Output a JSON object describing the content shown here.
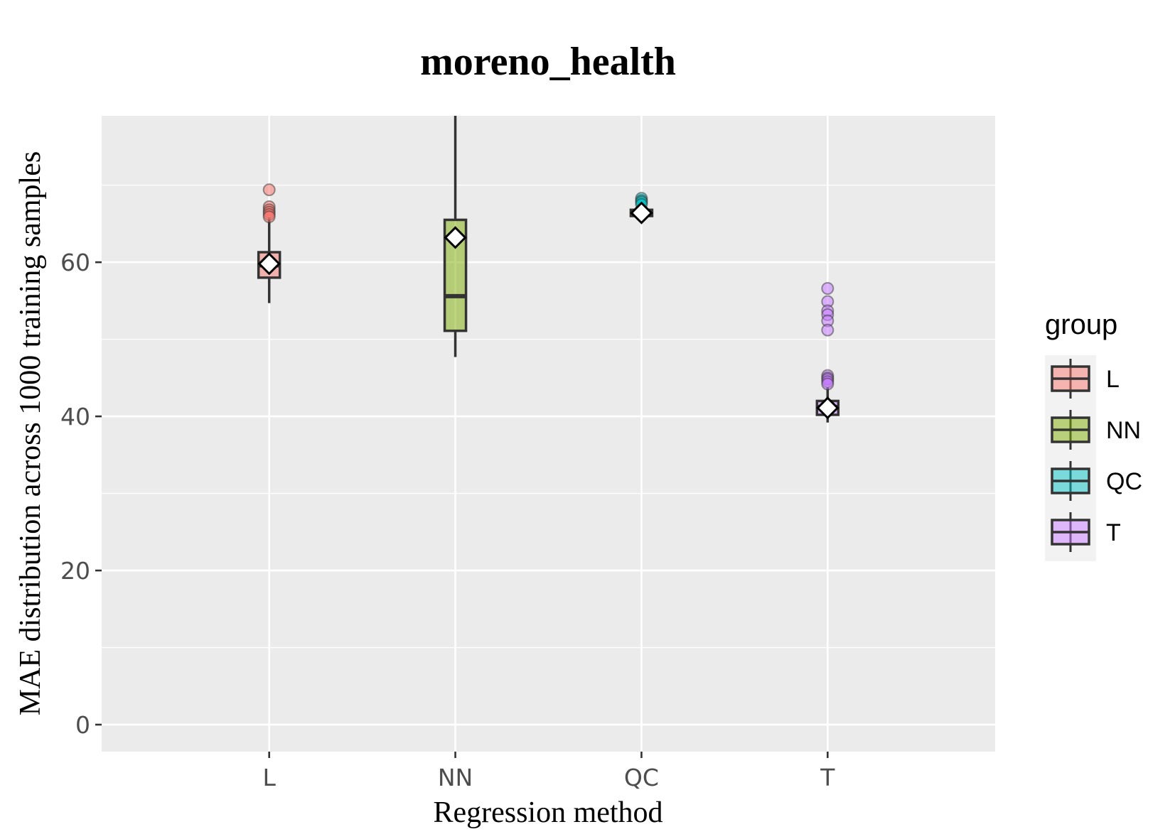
{
  "chart_data": {
    "type": "box",
    "title": "moreno_health",
    "xlabel": "Regression method",
    "ylabel": "MAE distribution across 1000 training samples",
    "categories": [
      "L",
      "NN",
      "QC",
      "T"
    ],
    "ylim": [
      -3.5,
      79
    ],
    "yticks": [
      0,
      20,
      40,
      60
    ],
    "grid": true,
    "legend": {
      "title": "group",
      "position": "right",
      "items": [
        "L",
        "NN",
        "QC",
        "T"
      ]
    },
    "series": [
      {
        "name": "L",
        "fill": "#f8766d",
        "min": 54.7,
        "q1": 58.0,
        "median": 59.6,
        "q3": 61.3,
        "max": 65.8,
        "mean": 59.8,
        "outliers": [
          69.4,
          67.2,
          66.8,
          66.5,
          66.2,
          65.9
        ]
      },
      {
        "name": "NN",
        "fill": "#7cae00",
        "min": 47.7,
        "q1": 51.1,
        "median": 55.6,
        "q3": 65.5,
        "max": 79.0,
        "mean": 63.2,
        "outliers": []
      },
      {
        "name": "QC",
        "fill": "#00bfc4",
        "min": 65.8,
        "q1": 66.0,
        "median": 66.4,
        "q3": 66.8,
        "max": 67.2,
        "mean": 66.4,
        "outliers": [
          68.3,
          68.0,
          67.8,
          67.5
        ]
      },
      {
        "name": "T",
        "fill": "#c77cff",
        "min": 39.2,
        "q1": 40.2,
        "median": 41.2,
        "q3": 42.0,
        "max": 43.8,
        "mean": 41.1,
        "outliers": [
          56.6,
          54.9,
          53.7,
          53.2,
          52.4,
          51.2,
          45.3,
          45.0,
          44.8,
          44.5,
          44.2
        ]
      }
    ]
  }
}
